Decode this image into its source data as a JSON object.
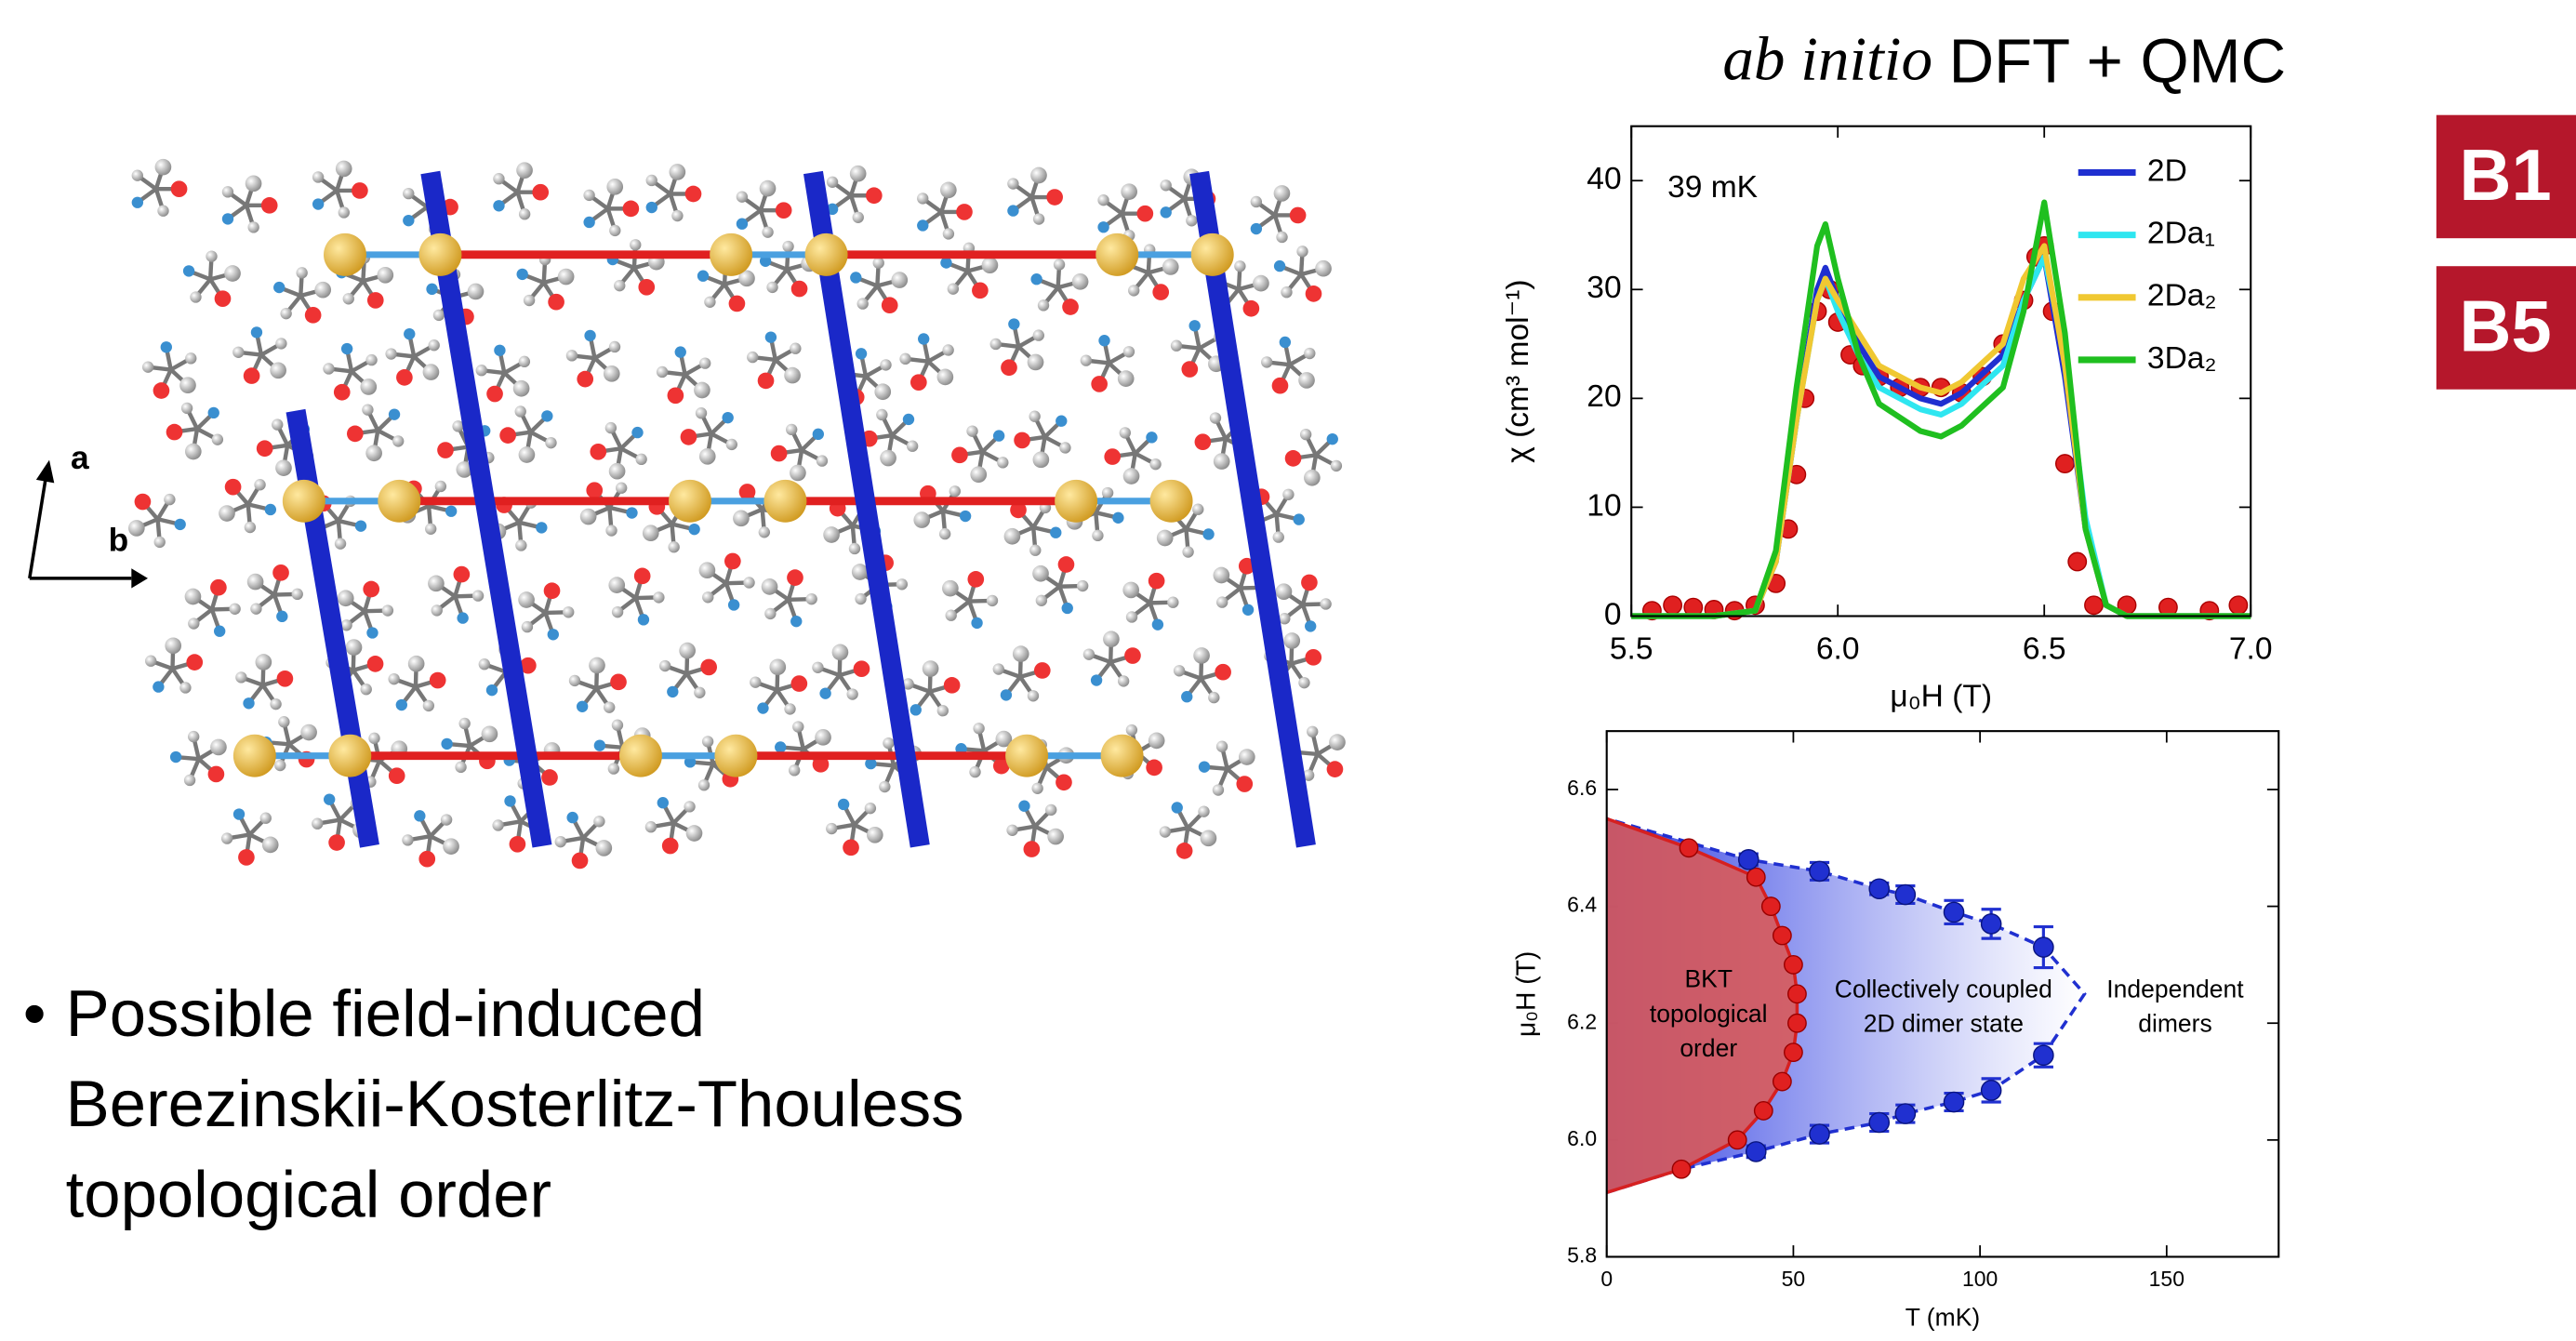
{
  "slide": {
    "badges": [
      "B1",
      "B5"
    ],
    "bullet": [
      "Possible field-induced",
      "Berezinskii-Kosterlitz-Thouless",
      "topological order"
    ],
    "lattice_axes": [
      "a",
      "b"
    ]
  },
  "chart_data": [
    {
      "type": "line",
      "title_italic": "ab initio",
      "title": "DFT + QMC",
      "annotation": "39 mK",
      "xlabel": "μ₀H (T)",
      "ylabel": "χ (cm³ mol⁻¹)",
      "xlim": [
        5.5,
        7.0
      ],
      "ylim": [
        0,
        45
      ],
      "xticks": [
        5.5,
        {
          "value": 6,
          "label": "6.0"
        },
        6.5,
        {
          "value": 7,
          "label": "7.0"
        }
      ],
      "yticks": [
        0,
        10,
        20,
        30,
        40
      ],
      "x": [
        5.5,
        5.7,
        5.8,
        5.85,
        5.9,
        5.95,
        5.97,
        6.0,
        6.05,
        6.1,
        6.2,
        6.25,
        6.3,
        6.4,
        6.45,
        6.5,
        6.55,
        6.6,
        6.65,
        6.7,
        7.0
      ],
      "series": [
        {
          "name": "2D",
          "color": "#1f2fd0",
          "values": [
            0,
            0,
            0.5,
            5,
            18,
            30,
            32,
            29,
            25,
            22,
            20,
            19.5,
            20.5,
            24,
            29,
            33,
            22,
            8,
            1,
            0,
            0
          ]
        },
        {
          "name": "2Da₁",
          "color": "#2ee6f0",
          "values": [
            0,
            0,
            0.5,
            5,
            18,
            29,
            31,
            28,
            24,
            21,
            19,
            18.5,
            19.5,
            23,
            29,
            33,
            24,
            9,
            1,
            0,
            0
          ]
        },
        {
          "name": "2Da₂",
          "color": "#f0c832",
          "values": [
            0,
            0,
            0.5,
            5,
            18,
            29,
            31,
            29,
            26,
            23,
            21,
            20.5,
            21.5,
            25,
            31,
            34,
            23,
            8,
            1,
            0,
            0
          ]
        },
        {
          "name": "3Da₂",
          "color": "#1fbf1f",
          "values": [
            0,
            0,
            0.5,
            6,
            21,
            34,
            36,
            31,
            24,
            19.5,
            17,
            16.5,
            17.5,
            21,
            28,
            38,
            26,
            8,
            1,
            0,
            0
          ]
        }
      ],
      "points": {
        "color": "#e02020",
        "x": [
          5.55,
          5.6,
          5.65,
          5.7,
          5.75,
          5.8,
          5.85,
          5.88,
          5.9,
          5.92,
          5.95,
          5.98,
          6.0,
          6.03,
          6.06,
          6.1,
          6.15,
          6.2,
          6.25,
          6.3,
          6.35,
          6.4,
          6.45,
          6.48,
          6.5,
          6.52,
          6.55,
          6.58,
          6.62,
          6.7,
          6.8,
          6.9,
          6.97
        ],
        "y": [
          0.5,
          1,
          0.8,
          0.6,
          0.5,
          1,
          3,
          8,
          13,
          20,
          28,
          30,
          27,
          24,
          23,
          22,
          21,
          21,
          21,
          20.5,
          22,
          25,
          29,
          33,
          34,
          28,
          14,
          5,
          1,
          1,
          0.8,
          0.5,
          1
        ]
      }
    },
    {
      "type": "scatter",
      "xlabel": "T (mK)",
      "ylabel": "μ₀H (T)",
      "xlim": [
        0,
        180
      ],
      "ylim": [
        5.8,
        6.7
      ],
      "xticks": [
        0,
        50,
        100,
        150
      ],
      "yticks": [
        5.8,
        {
          "value": 6,
          "label": "6.0"
        },
        6.2,
        6.4,
        6.6
      ],
      "regions": [
        [
          "BKT",
          "topological",
          "order"
        ],
        [
          "Collectively coupled",
          "2D dimer state"
        ],
        [
          "Independent",
          "dimers"
        ]
      ],
      "curves": [
        {
          "color": "#d62020",
          "x": [
            0,
            20,
            35,
            42,
            47,
            50,
            51,
            51,
            50,
            47,
            44,
            40,
            22,
            0
          ],
          "y": [
            5.91,
            5.95,
            6.0,
            6.05,
            6.1,
            6.15,
            6.2,
            6.25,
            6.3,
            6.35,
            6.4,
            6.45,
            6.5,
            6.55
          ]
        },
        {
          "color": "#2030d0",
          "x": [
            0,
            20,
            40,
            57,
            73,
            80,
            93,
            103,
            117,
            128,
            117,
            103,
            93,
            80,
            73,
            57,
            38,
            0
          ],
          "y": [
            5.91,
            5.95,
            5.98,
            6.01,
            6.03,
            6.045,
            6.065,
            6.085,
            6.145,
            6.25,
            6.33,
            6.37,
            6.39,
            6.42,
            6.43,
            6.46,
            6.48,
            6.55
          ]
        }
      ],
      "red_points": {
        "color": "#e02020",
        "x": [
          20,
          35,
          42,
          47,
          50,
          51,
          51,
          50,
          47,
          44,
          40,
          22
        ],
        "y": [
          5.95,
          6.0,
          6.05,
          6.1,
          6.15,
          6.2,
          6.25,
          6.3,
          6.35,
          6.4,
          6.45,
          6.5
        ]
      },
      "blue_points": {
        "color": "#2030d0",
        "x": [
          40,
          57,
          73,
          80,
          93,
          103,
          117,
          38,
          57,
          73,
          80,
          93,
          103,
          117
        ],
        "y": [
          5.98,
          6.01,
          6.03,
          6.045,
          6.065,
          6.085,
          6.145,
          6.48,
          6.46,
          6.43,
          6.42,
          6.39,
          6.37,
          6.33
        ],
        "err": [
          0.01,
          0.015,
          0.015,
          0.015,
          0.015,
          0.02,
          0.02,
          0.01,
          0.015,
          0.01,
          0.015,
          0.02,
          0.025,
          0.035
        ]
      }
    }
  ]
}
